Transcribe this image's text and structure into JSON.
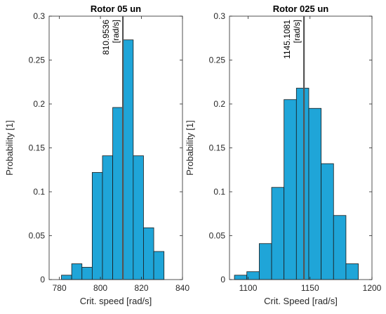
{
  "chart_data": [
    {
      "type": "bar",
      "title": "Rotor 05 un",
      "xlabel": "Crit. speed [rad/s]",
      "ylabel": "Probability [1]",
      "xlim": [
        775,
        840
      ],
      "ylim": [
        0,
        0.3
      ],
      "xticks": [
        780,
        800,
        820,
        840
      ],
      "yticks": [
        0,
        0.05,
        0.1,
        0.15,
        0.2,
        0.25,
        0.3
      ],
      "bin_edges": [
        781,
        786,
        791,
        796,
        801,
        806,
        811,
        816,
        821,
        826,
        831
      ],
      "values": [
        0.005,
        0.018,
        0.014,
        0.122,
        0.141,
        0.196,
        0.273,
        0.141,
        0.059,
        0.032
      ],
      "bar_color": "#1fa5d8",
      "edge_color": "#1a1a1a",
      "grid": false,
      "mean_line": {
        "x": 810.9536,
        "label": "810.9536",
        "unit": "[rad/s]",
        "color": "#555555"
      }
    },
    {
      "type": "bar",
      "title": "Rotor 025 un",
      "xlabel": "Crit. Speed [rad/s]",
      "ylabel": "Probability [1]",
      "xlim": [
        1085,
        1200
      ],
      "ylim": [
        0,
        0.3
      ],
      "xticks": [
        1100,
        1150,
        1200
      ],
      "yticks": [
        0,
        0.05,
        0.1,
        0.15,
        0.2,
        0.25,
        0.3
      ],
      "bin_edges": [
        1089,
        1099,
        1109,
        1119,
        1129,
        1139,
        1149,
        1159,
        1169,
        1179,
        1189
      ],
      "values": [
        0.005,
        0.009,
        0.041,
        0.105,
        0.205,
        0.218,
        0.195,
        0.132,
        0.073,
        0.018
      ],
      "bar_color": "#1fa5d8",
      "edge_color": "#1a1a1a",
      "grid": false,
      "mean_line": {
        "x": 1145.1081,
        "label": "1145.1081",
        "unit": "[rad/s]",
        "color": "#555555"
      }
    }
  ]
}
